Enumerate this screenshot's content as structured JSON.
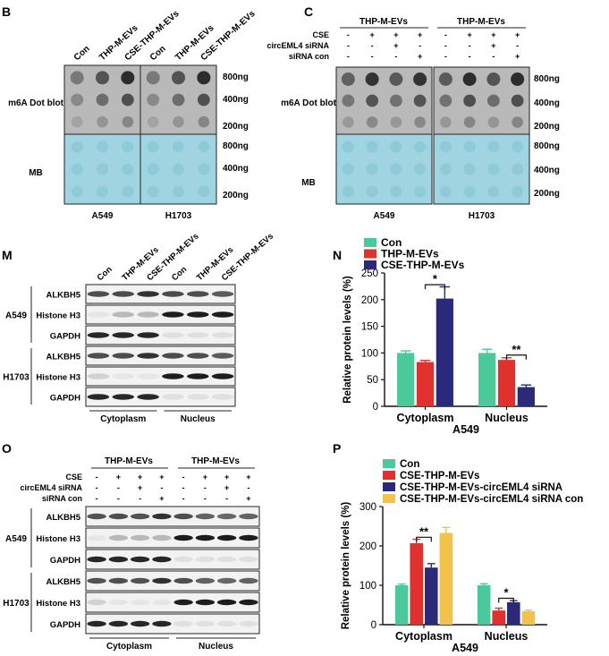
{
  "colors": {
    "teal": "#4cc99a",
    "red": "#e0312f",
    "navy": "#2b2a7a",
    "gold": "#f2c24a",
    "blot_bg": "#b9b9b9",
    "mb_bg": "#9fd4e0"
  },
  "panel_B": {
    "letter": "B",
    "lanes": [
      "Con",
      "THP-M-EVs",
      "CSE-THP-M-EVs",
      "Con",
      "THP-M-EVs",
      "CSE-THP-M-EVs"
    ],
    "row_dot": "m6A Dot blot",
    "row_mb": "MB",
    "amounts": [
      "800ng",
      "400ng",
      "200ng"
    ],
    "cells": [
      "A549",
      "H1703"
    ]
  },
  "panel_C": {
    "letter": "C",
    "groups": [
      "THP-M-EVs",
      "THP-M-EVs"
    ],
    "conditions": [
      {
        "name": "CSE",
        "values": [
          "-",
          "+",
          "+",
          "+",
          "-",
          "+",
          "+",
          "+"
        ]
      },
      {
        "name": "circEML4 siRNA",
        "values": [
          "-",
          "-",
          "+",
          "-",
          "-",
          "-",
          "+",
          "-"
        ]
      },
      {
        "name": "siRNA con",
        "values": [
          "-",
          "-",
          "-",
          "+",
          "-",
          "-",
          "-",
          "+"
        ]
      }
    ],
    "row_dot": "m6A Dot blot",
    "row_mb": "MB",
    "amounts": [
      "800ng",
      "400ng",
      "200ng"
    ],
    "cells": [
      "A549",
      "H1703"
    ]
  },
  "panel_M": {
    "letter": "M",
    "lanes": [
      "Con",
      "THP-M-EVs",
      "CSE-THP-M-EVs",
      "Con",
      "THP-M-EVs",
      "CSE-THP-M-EVs"
    ],
    "cell_lines": [
      "A549",
      "H1703"
    ],
    "proteins": [
      "ALKBH5",
      "Histone H3",
      "GAPDH"
    ],
    "fractions": [
      "Cytoplasm",
      "Nucleus"
    ]
  },
  "panel_O": {
    "letter": "O",
    "groups": [
      "THP-M-EVs",
      "THP-M-EVs"
    ],
    "conditions": [
      {
        "name": "CSE",
        "values": [
          "-",
          "+",
          "+",
          "+",
          "-",
          "+",
          "+",
          "+"
        ]
      },
      {
        "name": "circEML4 siRNA",
        "values": [
          "-",
          "-",
          "+",
          "-",
          "-",
          "-",
          "+",
          "-"
        ]
      },
      {
        "name": "siRNA con",
        "values": [
          "-",
          "-",
          "-",
          "+",
          "-",
          "-",
          "-",
          "+"
        ]
      }
    ],
    "cell_lines": [
      "A549",
      "H1703"
    ],
    "proteins": [
      "ALKBH5",
      "Histone H3",
      "GAPDH"
    ],
    "fractions": [
      "Cytoplasm",
      "Nucleus"
    ]
  },
  "chart_data": [
    {
      "panel": "N",
      "type": "bar",
      "categories": [
        "Cytoplasm",
        "Nucleus"
      ],
      "series": [
        {
          "name": "Con",
          "values": [
            100,
            100
          ],
          "errors": [
            4,
            7
          ]
        },
        {
          "name": "THP-M-EVs",
          "values": [
            83,
            87
          ],
          "errors": [
            3,
            4
          ]
        },
        {
          "name": "CSE-THP-M-EVs",
          "values": [
            202,
            36
          ],
          "errors": [
            22,
            4
          ]
        }
      ],
      "ylabel": "Relative protein levels (%)",
      "xlabel": "A549",
      "ylim": [
        0,
        250
      ],
      "yticks": [
        0,
        50,
        100,
        150,
        200,
        250
      ],
      "legend": "top-left",
      "significance": [
        {
          "category": "Cytoplasm",
          "between": [
            1,
            2
          ],
          "label": "*",
          "y": 228
        },
        {
          "category": "Nucleus",
          "between": [
            1,
            2
          ],
          "label": "**",
          "y": 96
        }
      ]
    },
    {
      "panel": "P",
      "type": "bar",
      "categories": [
        "Cytoplasm",
        "Nucleus"
      ],
      "series": [
        {
          "name": "Con",
          "values": [
            100,
            100
          ],
          "errors": [
            3,
            4
          ]
        },
        {
          "name": "CSE-THP-M-EVs",
          "values": [
            207,
            36
          ],
          "errors": [
            10,
            6
          ]
        },
        {
          "name": "CSE-THP-M-EVs-circEML4 siRNA",
          "values": [
            145,
            57
          ],
          "errors": [
            10,
            4
          ]
        },
        {
          "name": "CSE-THP-M-EVs-circEML4 siRNA con",
          "values": [
            233,
            34
          ],
          "errors": [
            14,
            3
          ]
        }
      ],
      "ylabel": "Relative protein levels (%)",
      "xlabel": "A549",
      "ylim": [
        0,
        300
      ],
      "yticks": [
        0,
        100,
        200,
        300
      ],
      "legend": "top-left",
      "significance": [
        {
          "category": "Cytoplasm",
          "between": [
            1,
            2
          ],
          "label": "**",
          "y": 222
        },
        {
          "category": "Nucleus",
          "between": [
            1,
            2
          ],
          "label": "*",
          "y": 67
        }
      ]
    }
  ]
}
